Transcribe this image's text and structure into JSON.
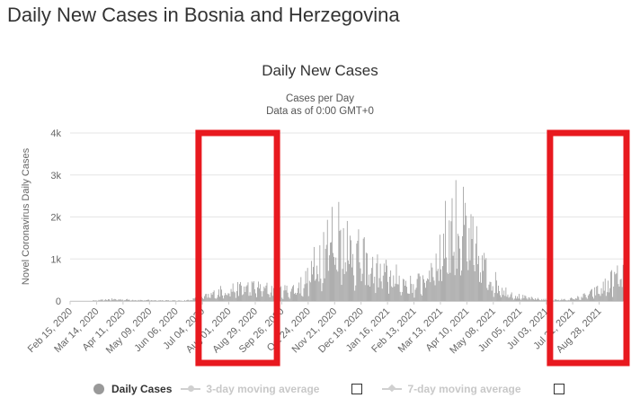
{
  "page": {
    "title": "Daily New Cases in Bosnia and Herzegovina"
  },
  "chart_data": {
    "type": "bar",
    "title": "Daily New Cases",
    "subtitle": "Cases per Day",
    "subtitle2": "Data as of 0:00 GMT+0",
    "ylabel": "Novel Coronavirus Daily Cases",
    "xlabel": "",
    "ylim": [
      0,
      4000
    ],
    "yticks": [
      {
        "value": 0,
        "label": "0"
      },
      {
        "value": 1000,
        "label": "1k"
      },
      {
        "value": 2000,
        "label": "2k"
      },
      {
        "value": 3000,
        "label": "3k"
      },
      {
        "value": 4000,
        "label": "4k"
      }
    ],
    "date_range": [
      "2020-02-15",
      "2021-09-26"
    ],
    "xtick_labels": [
      "Feb 15, 2020",
      "Mar 14, 2020",
      "Apr 11, 2020",
      "May 09, 2020",
      "Jun 06, 2020",
      "Jul 04, 2020",
      "Aug 01, 2020",
      "Aug 29, 2020",
      "Sep 26, 2020",
      "Oct 24, 2020",
      "Nov 21, 2020",
      "Dec 19, 2020",
      "Jan 16, 2021",
      "Feb 13, 2021",
      "Mar 13, 2021",
      "Apr 10, 2021",
      "May 08, 2021",
      "Jun 05, 2021",
      "Jul 03, 2021",
      "Jul 31, 2021",
      "Aug 28, 2021"
    ],
    "series": [
      {
        "name": "Daily Cases",
        "color": "#999999",
        "weekly_values": [
          0,
          0,
          0,
          5,
          15,
          25,
          40,
          40,
          35,
          30,
          25,
          20,
          20,
          15,
          20,
          15,
          10,
          10,
          25,
          60,
          90,
          140,
          200,
          260,
          290,
          300,
          330,
          340,
          330,
          320,
          300,
          280,
          260,
          270,
          320,
          420,
          600,
          900,
          1300,
          1600,
          1750,
          1700,
          1500,
          1200,
          1050,
          900,
          800,
          700,
          650,
          600,
          500,
          420,
          380,
          500,
          700,
          1000,
          1300,
          1700,
          2000,
          1900,
          1600,
          1300,
          1000,
          700,
          500,
          350,
          240,
          160,
          110,
          80,
          60,
          45,
          35,
          30,
          30,
          40,
          60,
          90,
          140,
          200,
          280,
          380,
          520,
          650,
          760,
          700
        ]
      },
      {
        "name": "3-day moving average",
        "visible": false
      },
      {
        "name": "7-day moving average",
        "visible": false
      }
    ],
    "annotations": [
      {
        "type": "highlight-box",
        "color": "#e8191f",
        "x_range": [
          "Jun 30, 2020",
          "Sep 21, 2020"
        ]
      },
      {
        "type": "highlight-box",
        "color": "#e8191f",
        "x_range": [
          "Jul 07, 2021",
          "Sep 26, 2021"
        ]
      }
    ],
    "legend": {
      "position": "bottom"
    }
  }
}
